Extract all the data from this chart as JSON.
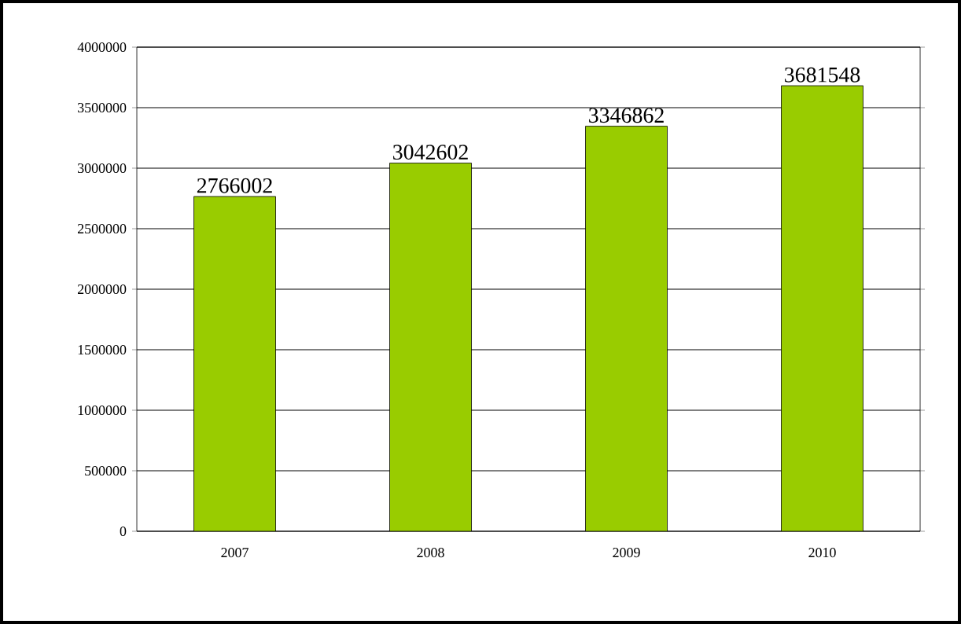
{
  "chart_data": {
    "type": "bar",
    "categories": [
      "2007",
      "2008",
      "2009",
      "2010"
    ],
    "values": [
      2766002,
      3042602,
      3346862,
      3681548
    ],
    "color": "#99cc00",
    "ylim": [
      0,
      4000000
    ],
    "yticks": [
      0,
      500000,
      1000000,
      1500000,
      2000000,
      2500000,
      3000000,
      3500000,
      4000000
    ],
    "grid": "y",
    "data_labels": true
  }
}
